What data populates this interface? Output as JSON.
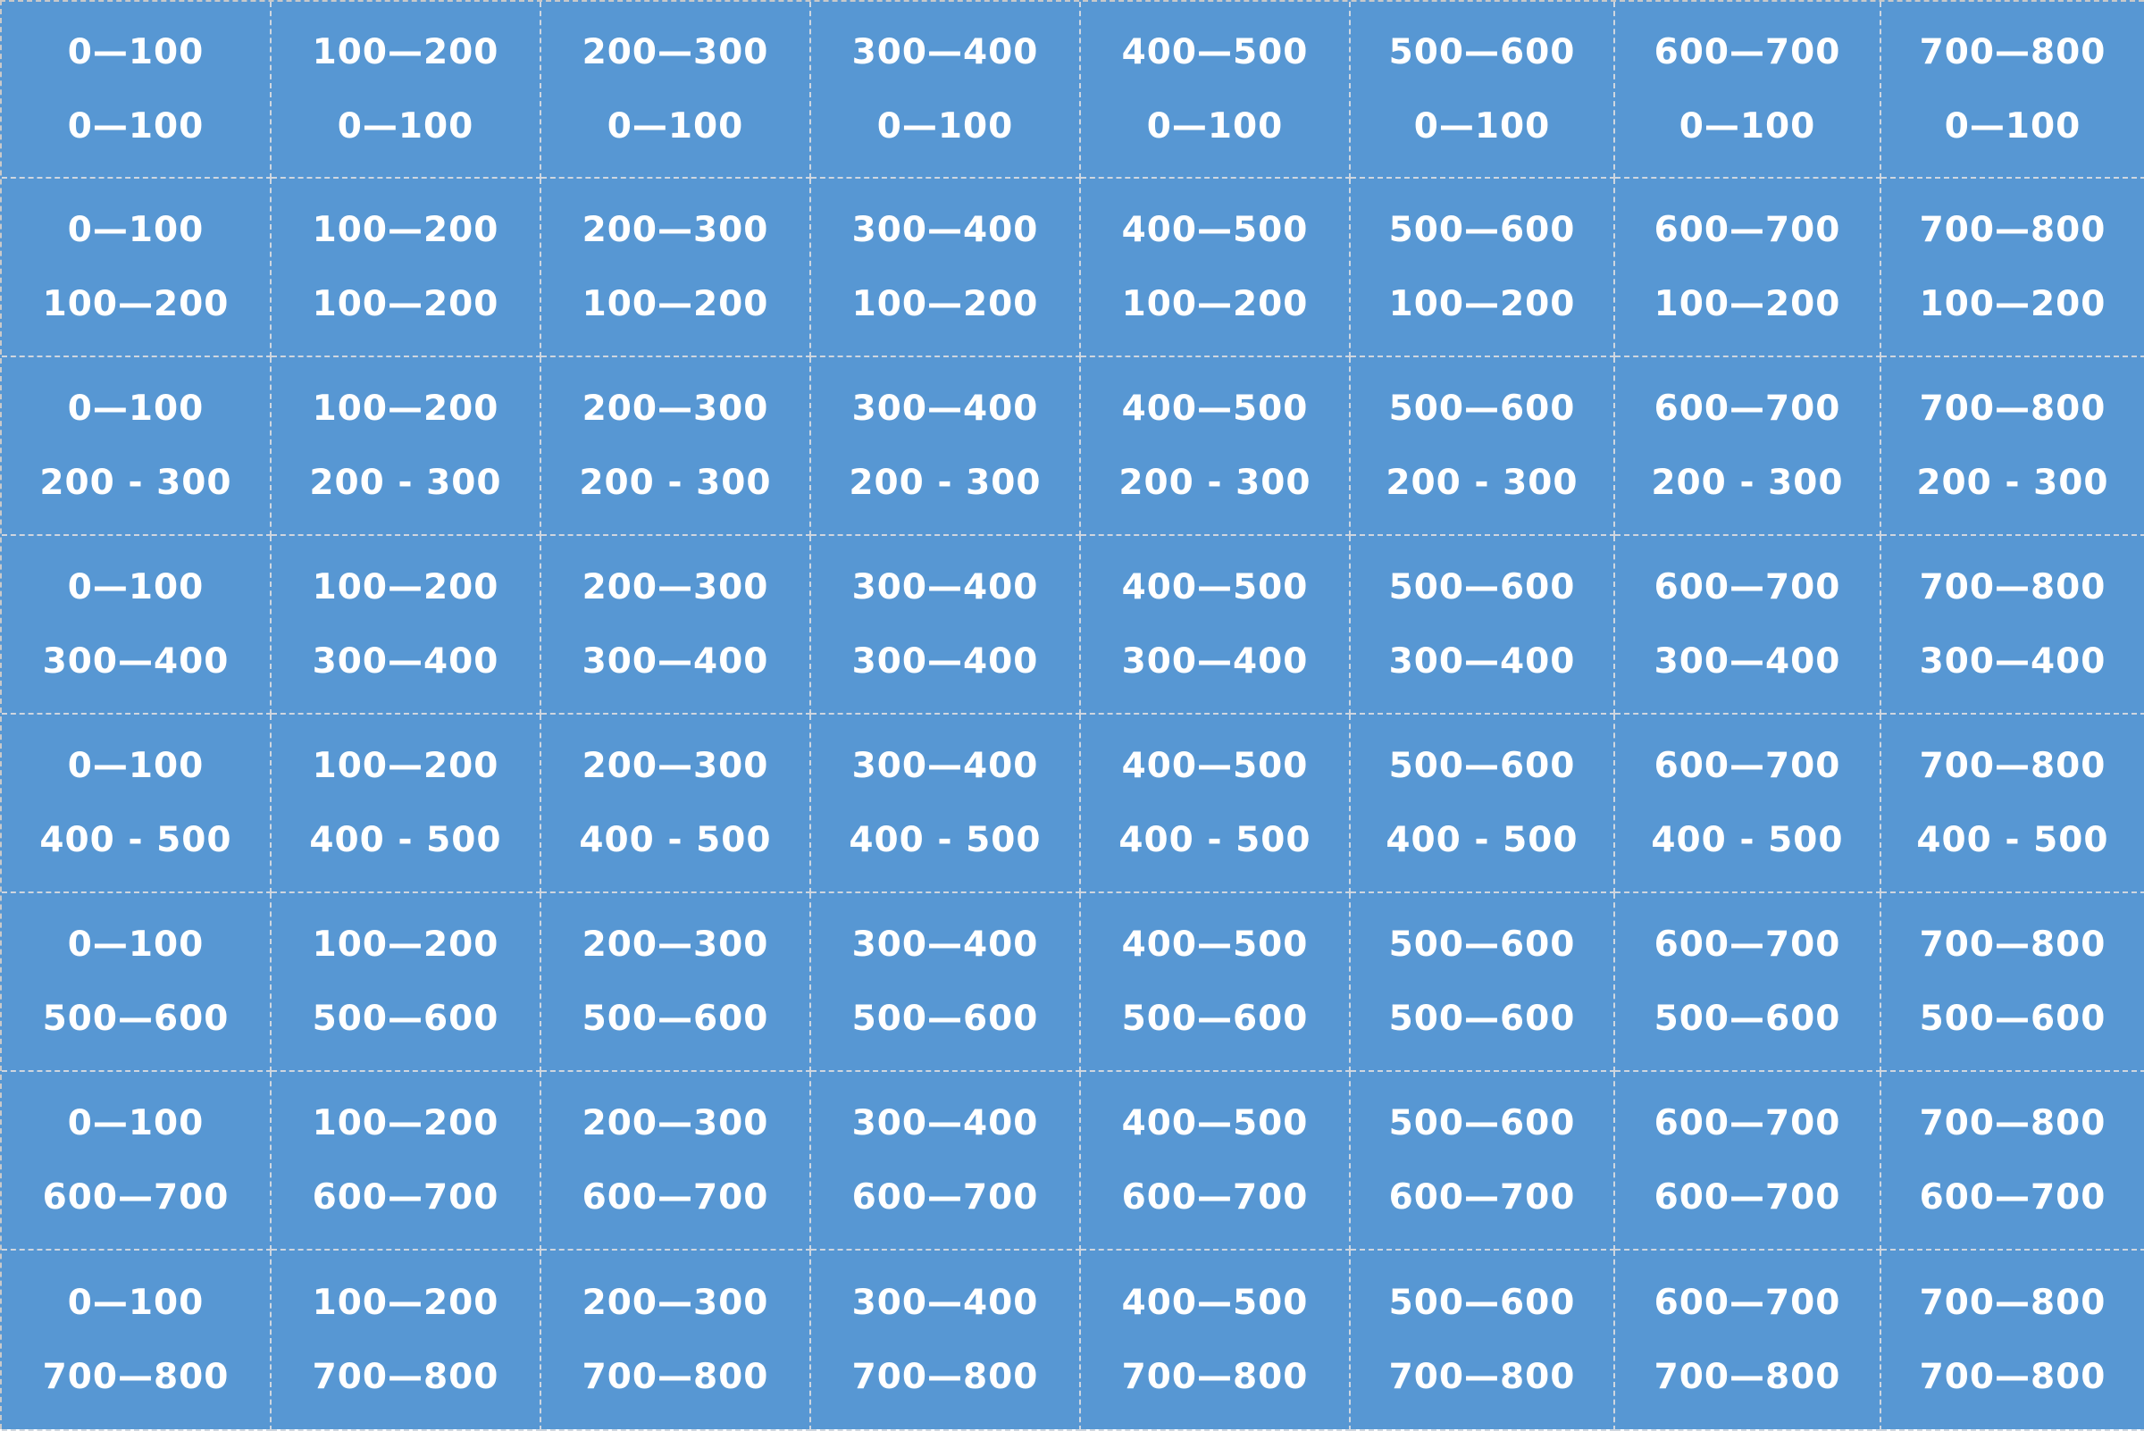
{
  "grid": {
    "background_color": "#5797d3",
    "text_color": "#ffffff",
    "divider_color": "#cfd6df",
    "rows": [
      [
        [
          "0—100",
          "0—100"
        ],
        [
          "100—200",
          "0—100"
        ],
        [
          "200—300",
          "0—100"
        ],
        [
          "300—400",
          "0—100"
        ],
        [
          "400—500",
          "0—100"
        ],
        [
          "500—600",
          "0—100"
        ],
        [
          "600—700",
          "0—100"
        ],
        [
          "700—800",
          "0—100"
        ]
      ],
      [
        [
          "0—100",
          "100—200"
        ],
        [
          "100—200",
          "100—200"
        ],
        [
          "200—300",
          "100—200"
        ],
        [
          "300—400",
          "100—200"
        ],
        [
          "400—500",
          "100—200"
        ],
        [
          "500—600",
          "100—200"
        ],
        [
          "600—700",
          "100—200"
        ],
        [
          "700—800",
          "100—200"
        ]
      ],
      [
        [
          "0—100",
          "200 - 300"
        ],
        [
          "100—200",
          "200 - 300"
        ],
        [
          "200—300",
          "200 - 300"
        ],
        [
          "300—400",
          "200 - 300"
        ],
        [
          "400—500",
          "200 - 300"
        ],
        [
          "500—600",
          "200 - 300"
        ],
        [
          "600—700",
          "200 - 300"
        ],
        [
          "700—800",
          "200 - 300"
        ]
      ],
      [
        [
          "0—100",
          "300—400"
        ],
        [
          "100—200",
          "300—400"
        ],
        [
          "200—300",
          "300—400"
        ],
        [
          "300—400",
          "300—400"
        ],
        [
          "400—500",
          "300—400"
        ],
        [
          "500—600",
          "300—400"
        ],
        [
          "600—700",
          "300—400"
        ],
        [
          "700—800",
          "300—400"
        ]
      ],
      [
        [
          "0—100",
          "400 - 500"
        ],
        [
          "100—200",
          "400 - 500"
        ],
        [
          "200—300",
          "400 - 500"
        ],
        [
          "300—400",
          "400 - 500"
        ],
        [
          "400—500",
          "400 - 500"
        ],
        [
          "500—600",
          "400 - 500"
        ],
        [
          "600—700",
          "400 - 500"
        ],
        [
          "700—800",
          "400 - 500"
        ]
      ],
      [
        [
          "0—100",
          "500—600"
        ],
        [
          "100—200",
          "500—600"
        ],
        [
          "200—300",
          "500—600"
        ],
        [
          "300—400",
          "500—600"
        ],
        [
          "400—500",
          "500—600"
        ],
        [
          "500—600",
          "500—600"
        ],
        [
          "600—700",
          "500—600"
        ],
        [
          "700—800",
          "500—600"
        ]
      ],
      [
        [
          "0—100",
          "600—700"
        ],
        [
          "100—200",
          "600—700"
        ],
        [
          "200—300",
          "600—700"
        ],
        [
          "300—400",
          "600—700"
        ],
        [
          "400—500",
          "600—700"
        ],
        [
          "500—600",
          "600—700"
        ],
        [
          "600—700",
          "600—700"
        ],
        [
          "700—800",
          "600—700"
        ]
      ],
      [
        [
          "0—100",
          "700—800"
        ],
        [
          "100—200",
          "700—800"
        ],
        [
          "200—300",
          "700—800"
        ],
        [
          "300—400",
          "700—800"
        ],
        [
          "400—500",
          "700—800"
        ],
        [
          "500—600",
          "700—800"
        ],
        [
          "600—700",
          "700—800"
        ],
        [
          "700—800",
          "700—800"
        ]
      ]
    ]
  }
}
